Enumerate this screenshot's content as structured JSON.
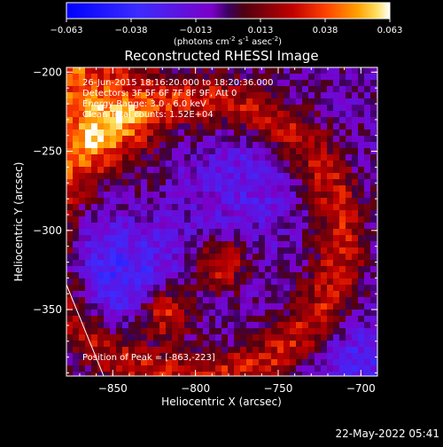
{
  "colorbar": {
    "ticks": [
      "-0.063",
      "-0.038",
      "-0.013",
      "0.013",
      "0.038",
      "0.063"
    ],
    "unit_main": "(photons cm",
    "unit_exp1": "-2",
    "unit_mid1": " s",
    "unit_exp2": "-1",
    "unit_mid2": " asec",
    "unit_exp3": "-2",
    "unit_end": ")"
  },
  "annotations": {
    "time": "26-Jun-2015 18:16:20.000 to 18:20:36.000",
    "detectors": "Detectors: 3F 5F 6F 7F 8F 9F, Att 0",
    "energy": "Energy Range: 3.0 - 6.0 keV",
    "clean": "Clean    Total counts: 1.52E+04",
    "peak": "Position of Peak = [-863,-223]"
  },
  "footer": {
    "date": "22-May-2022 05:41"
  },
  "chart_data": {
    "type": "heatmap",
    "title": "Reconstructed RHESSI Image",
    "xlabel": "Heliocentric X (arcsec)",
    "ylabel": "Heliocentric Y (arcsec)",
    "xlim": [
      -878,
      -690
    ],
    "ylim": [
      -392,
      -197
    ],
    "xticks": [
      -850,
      -800,
      -750,
      -700
    ],
    "xtick_labels": [
      "−850",
      "−800",
      "−750",
      "−700"
    ],
    "yticks": [
      -200,
      -250,
      -300,
      -350
    ],
    "ytick_labels": [
      "−200",
      "−250",
      "−300",
      "−350"
    ],
    "colormap": "hot-metal with negative blues",
    "value_range": [
      -0.063,
      0.063
    ],
    "peak_position": [
      -863,
      -223
    ],
    "features": [
      {
        "name": "bright upper-left source",
        "x": -865,
        "y": -222,
        "value": 0.06
      },
      {
        "name": "right-central blob",
        "x": -785,
        "y": -322,
        "value": 0.045
      },
      {
        "name": "lower-central blob",
        "x": -818,
        "y": -352,
        "value": 0.045
      }
    ]
  }
}
